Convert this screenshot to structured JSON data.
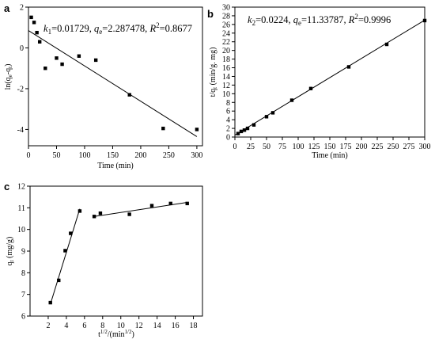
{
  "chart_data": [
    {
      "panel": "a",
      "type": "scatter",
      "xlabel": "Time  (min)",
      "ylabel": "ln(q_e-q_t)",
      "annotation": {
        "k": "k",
        "k_sub": "1",
        "k_val": "=0.01729, ",
        "q": "q",
        "q_sub": "e",
        "q_val": "=2.287478, ",
        "r": "R",
        "r_sup": "2",
        "r_val": "=0.8677"
      },
      "xlim": [
        0,
        310
      ],
      "ylim": [
        -4.8,
        2
      ],
      "xticks": [
        0,
        50,
        100,
        150,
        200,
        250,
        300
      ],
      "yticks": [
        -4,
        -2,
        0,
        2
      ],
      "x": [
        5,
        10,
        15,
        20,
        30,
        50,
        60,
        90,
        120,
        180,
        240,
        300
      ],
      "y": [
        1.5,
        1.25,
        0.75,
        0.3,
        -1.0,
        -0.5,
        -0.8,
        -0.4,
        -0.6,
        -2.3,
        -3.95,
        -4.0
      ],
      "fit": {
        "x": [
          0,
          300
        ],
        "y": [
          0.85,
          -4.35
        ]
      }
    },
    {
      "panel": "b",
      "type": "scatter",
      "xlabel": "Time  (min)",
      "ylabel": "t/q_t (min/g. mg)",
      "annotation": {
        "k": "k",
        "k_sub": "2",
        "k_val": "=0.0224, ",
        "q": "q",
        "q_sub": "e",
        "q_val": "=11.33787, ",
        "r": "R",
        "r_sup": "2",
        "r_val": "=0.9996"
      },
      "xlim": [
        0,
        300
      ],
      "ylim": [
        0,
        30
      ],
      "xticks": [
        0,
        25,
        50,
        75,
        100,
        125,
        150,
        175,
        200,
        225,
        250,
        275,
        300
      ],
      "yticks": [
        0,
        2,
        4,
        6,
        8,
        10,
        12,
        14,
        16,
        18,
        20,
        22,
        24,
        26,
        28,
        30
      ],
      "x": [
        5,
        10,
        15,
        20,
        30,
        50,
        60,
        90,
        120,
        180,
        240,
        300
      ],
      "y": [
        0.8,
        1.3,
        1.6,
        2.0,
        2.8,
        4.7,
        5.6,
        8.5,
        11.2,
        16.2,
        21.4,
        26.9
      ],
      "fit": {
        "x": [
          0,
          300
        ],
        "y": [
          0.45,
          27.0
        ]
      }
    },
    {
      "panel": "c",
      "type": "scatter",
      "xlabel": "t^1/2/(min^1/2)",
      "ylabel": "q_t (mg/g)",
      "xlim": [
        0,
        19
      ],
      "ylim": [
        6,
        12
      ],
      "xticks": [
        2,
        4,
        6,
        8,
        10,
        12,
        14,
        16,
        18
      ],
      "yticks": [
        6,
        7,
        8,
        9,
        10,
        11,
        12
      ],
      "x": [
        2.24,
        3.16,
        3.87,
        4.47,
        5.48,
        7.07,
        7.75,
        10.95,
        13.42,
        15.49,
        17.32
      ],
      "y": [
        6.62,
        7.65,
        9.02,
        9.82,
        10.85,
        10.6,
        10.75,
        10.7,
        11.1,
        11.2,
        11.2
      ],
      "fit": [
        {
          "x": [
            2.24,
            5.48
          ],
          "y": [
            6.55,
            10.95
          ]
        },
        {
          "x": [
            7.07,
            17.32
          ],
          "y": [
            10.6,
            11.25
          ]
        }
      ]
    }
  ]
}
